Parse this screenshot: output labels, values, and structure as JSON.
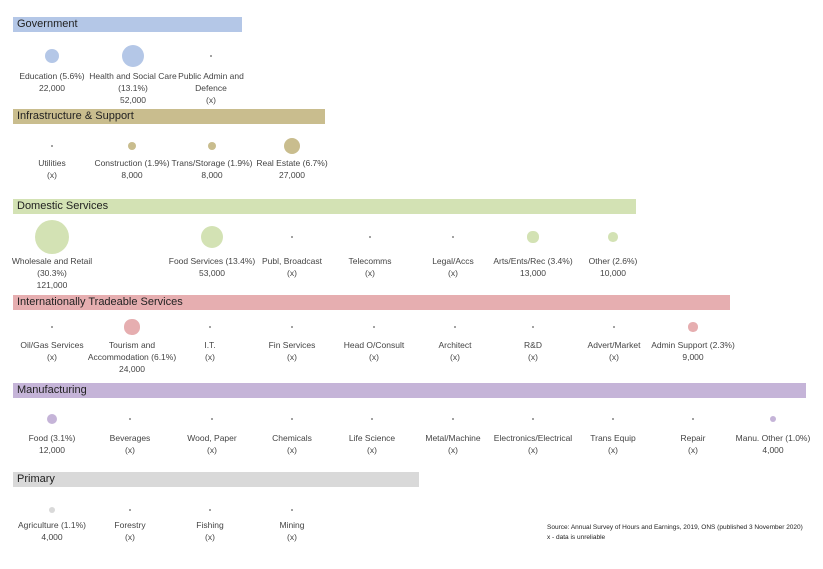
{
  "colors": {
    "Government": "#b4c7e7",
    "Infrastructure & Support": "#c9bd8e",
    "Domestic Services": "#d3e2b4",
    "Internationally Tradeable Services": "#e6aeb0",
    "Manufacturing": "#c5b4d8",
    "Primary": "#d9d9d9"
  },
  "chart_data": {
    "type": "scatter",
    "title": "",
    "groups": [
      {
        "name": "Government",
        "items": [
          {
            "label": "Education (5.6%)",
            "value": 22000,
            "value_text": "22,000"
          },
          {
            "label": "Health and Social Care (13.1%)",
            "value": 52000,
            "value_text": "52,000"
          },
          {
            "label": "Public Admin and Defence",
            "value": null,
            "value_text": "(x)"
          }
        ]
      },
      {
        "name": "Infrastructure & Support",
        "items": [
          {
            "label": "Utilities",
            "value": null,
            "value_text": "(x)"
          },
          {
            "label": "Construction (1.9%)",
            "value": 8000,
            "value_text": "8,000"
          },
          {
            "label": "Trans/Storage (1.9%)",
            "value": 8000,
            "value_text": "8,000"
          },
          {
            "label": "Real Estate (6.7%)",
            "value": 27000,
            "value_text": "27,000"
          }
        ]
      },
      {
        "name": "Domestic Services",
        "items": [
          {
            "label": "Wholesale and Retail (30.3%)",
            "value": 121000,
            "value_text": "121,000"
          },
          {
            "label": "Food Services (13.4%)",
            "value": 53000,
            "value_text": "53,000"
          },
          {
            "label": "Publ, Broadcast",
            "value": null,
            "value_text": "(x)"
          },
          {
            "label": "Telecomms",
            "value": null,
            "value_text": "(x)"
          },
          {
            "label": "Legal/Accs",
            "value": null,
            "value_text": "(x)"
          },
          {
            "label": "Arts/Ents/Rec (3.4%)",
            "value": 13000,
            "value_text": "13,000"
          },
          {
            "label": "Other (2.6%)",
            "value": 10000,
            "value_text": "10,000"
          }
        ]
      },
      {
        "name": "Internationally Tradeable Services",
        "items": [
          {
            "label": "Oil/Gas Services",
            "value": null,
            "value_text": "(x)"
          },
          {
            "label": "Tourism and Accommodation (6.1%)",
            "value": 24000,
            "value_text": "24,000"
          },
          {
            "label": "I.T.",
            "value": null,
            "value_text": "(x)"
          },
          {
            "label": "Fin Services",
            "value": null,
            "value_text": "(x)"
          },
          {
            "label": "Head O/Consult",
            "value": null,
            "value_text": "(x)"
          },
          {
            "label": "Architect",
            "value": null,
            "value_text": "(x)"
          },
          {
            "label": "R&D",
            "value": null,
            "value_text": "(x)"
          },
          {
            "label": "Advert/Market",
            "value": null,
            "value_text": "(x)"
          },
          {
            "label": "Admin Support (2.3%)",
            "value": 9000,
            "value_text": "9,000"
          }
        ]
      },
      {
        "name": "Manufacturing",
        "items": [
          {
            "label": "Food (3.1%)",
            "value": 12000,
            "value_text": "12,000"
          },
          {
            "label": "Beverages",
            "value": null,
            "value_text": "(x)"
          },
          {
            "label": "Wood, Paper",
            "value": null,
            "value_text": "(x)"
          },
          {
            "label": "Chemicals",
            "value": null,
            "value_text": "(x)"
          },
          {
            "label": "Life Science",
            "value": null,
            "value_text": "(x)"
          },
          {
            "label": "Metal/Machine",
            "value": null,
            "value_text": "(x)"
          },
          {
            "label": "Electronics/Electrical",
            "value": null,
            "value_text": "(x)"
          },
          {
            "label": "Trans Equip",
            "value": null,
            "value_text": "(x)"
          },
          {
            "label": "Repair",
            "value": null,
            "value_text": "(x)"
          },
          {
            "label": "Manu. Other (1.0%)",
            "value": 4000,
            "value_text": "4,000"
          }
        ]
      },
      {
        "name": "Primary",
        "items": [
          {
            "label": "Agriculture (1.1%)",
            "value": 4000,
            "value_text": "4,000"
          },
          {
            "label": "Forestry",
            "value": null,
            "value_text": "(x)"
          },
          {
            "label": "Fishing",
            "value": null,
            "value_text": "(x)"
          },
          {
            "label": "Mining",
            "value": null,
            "value_text": "(x)"
          }
        ]
      }
    ],
    "notes": [
      "Source: Annual Survey of Hours and Earnings, 2019, ONS (published 3 November 2020)",
      "x - data is unreliable"
    ]
  }
}
